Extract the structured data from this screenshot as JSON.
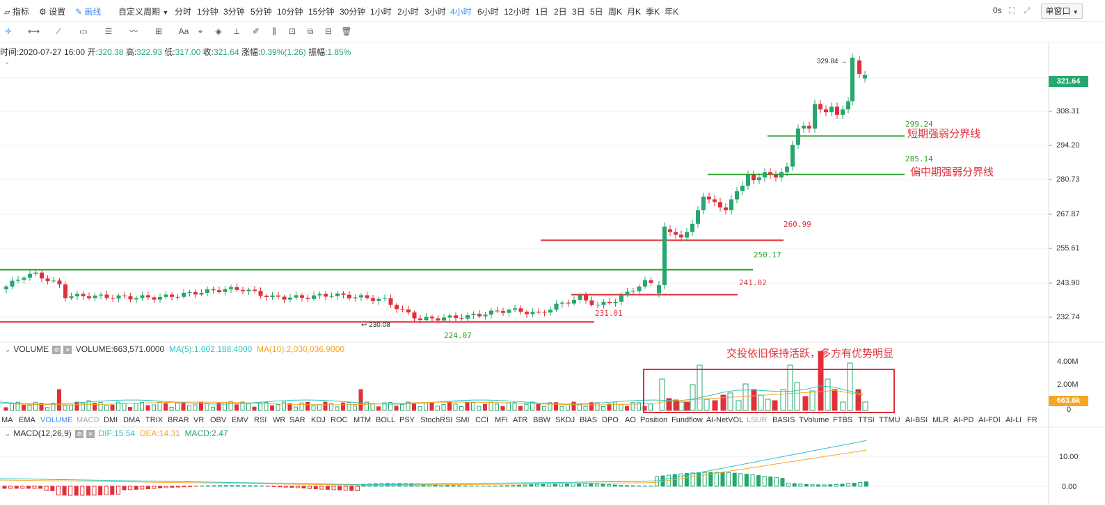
{
  "topbar": {
    "indicator": "指标",
    "settings": "设置",
    "draw": "画线",
    "custom_period": "自定义周期",
    "periods": [
      "分时",
      "1分钟",
      "3分钟",
      "5分钟",
      "10分钟",
      "15分钟",
      "30分钟",
      "1小时",
      "2小时",
      "3小时",
      "4小时",
      "6小时",
      "12小时",
      "1日",
      "2日",
      "3日",
      "5日",
      "周K",
      "月K",
      "季K",
      "年K"
    ],
    "active_period": "4小时",
    "timer": "0s",
    "window_mode": "单窗口"
  },
  "ohlc_info": {
    "time_label": "时间:",
    "time": "2020-07-27 16:00",
    "open_label": "开:",
    "open": "320.38",
    "high_label": "高:",
    "high": "322.93",
    "low_label": "低:",
    "low": "317.00",
    "close_label": "收:",
    "close": "321.64",
    "change_label": "涨幅:",
    "change": "0.39%(1.26)",
    "amp_label": "振幅:",
    "amp": "1.85%"
  },
  "price_axis": {
    "ticks": [
      "308.31",
      "294.20",
      "280.73",
      "267.87",
      "255.61",
      "243.90",
      "232.74"
    ],
    "current": "321.64"
  },
  "price_annotations": {
    "high_marker": "329.84",
    "low_marker": "230.08",
    "level_299": "299.24",
    "label_short": "短期强弱分界线",
    "level_285": "285.14",
    "label_mid": "偏中期强弱分界线",
    "level_260": "260.99",
    "level_250": "250.17",
    "level_241": "241.02",
    "level_231": "231.01",
    "level_224": "224.07"
  },
  "volume_pane": {
    "name": "VOLUME",
    "value": "VOLUME:663,571.0000",
    "ma5": "MA(5):1,602,188.4000",
    "ma10": "MA(10):2,030,036.9000",
    "annotation": "交投依旧保持活跃，多方有优势明显",
    "ticks": [
      "4.00M",
      "2.00M",
      "0"
    ],
    "current": "663.6k"
  },
  "indicator_tabs": [
    "MA",
    "EMA",
    "VOLUME",
    "MACD",
    "DMI",
    "DMA",
    "TRIX",
    "BRAR",
    "VR",
    "OBV",
    "EMV",
    "RSI",
    "WR",
    "SAR",
    "KDJ",
    "ROC",
    "MTM",
    "BOLL",
    "PSY",
    "StochRSI",
    "SMI",
    "CCI",
    "MFI",
    "ATR",
    "BBW",
    "SKDJ",
    "BIAS",
    "DPO",
    "AO",
    "Position",
    "Fundflow",
    "AI-NetVOL",
    "LSUR",
    "BASIS",
    "TVolume",
    "FTBS",
    "TTSI",
    "TTMU",
    "AI-BSI",
    "MLR",
    "AI-PD",
    "AI-FDI",
    "AI-LI",
    "FR"
  ],
  "active_indicator": "VOLUME",
  "macd_pane": {
    "name": "MACD(12,26,9)",
    "dif": "DIF:15.54",
    "dea": "DEA:14.31",
    "macd": "MACD:2.47",
    "ticks": [
      "10.00",
      "0.00"
    ]
  },
  "colors": {
    "up": "#25a76d",
    "down": "#e0313a",
    "accent": "#3b8cf3",
    "ma5": "#2fc5c0",
    "ma10": "#f5a623"
  },
  "icons": [
    "indicator-icon",
    "gear-icon",
    "pen-icon",
    "crosshair-icon",
    "horizontal-line-icon",
    "trend-line-icon",
    "rectangle-icon",
    "fib-icon",
    "wave-icon",
    "measure-icon",
    "text-icon",
    "magnet-icon",
    "lock-icon",
    "eye-icon",
    "trash-icon",
    "fullscreen-icon",
    "expand-icon"
  ]
}
